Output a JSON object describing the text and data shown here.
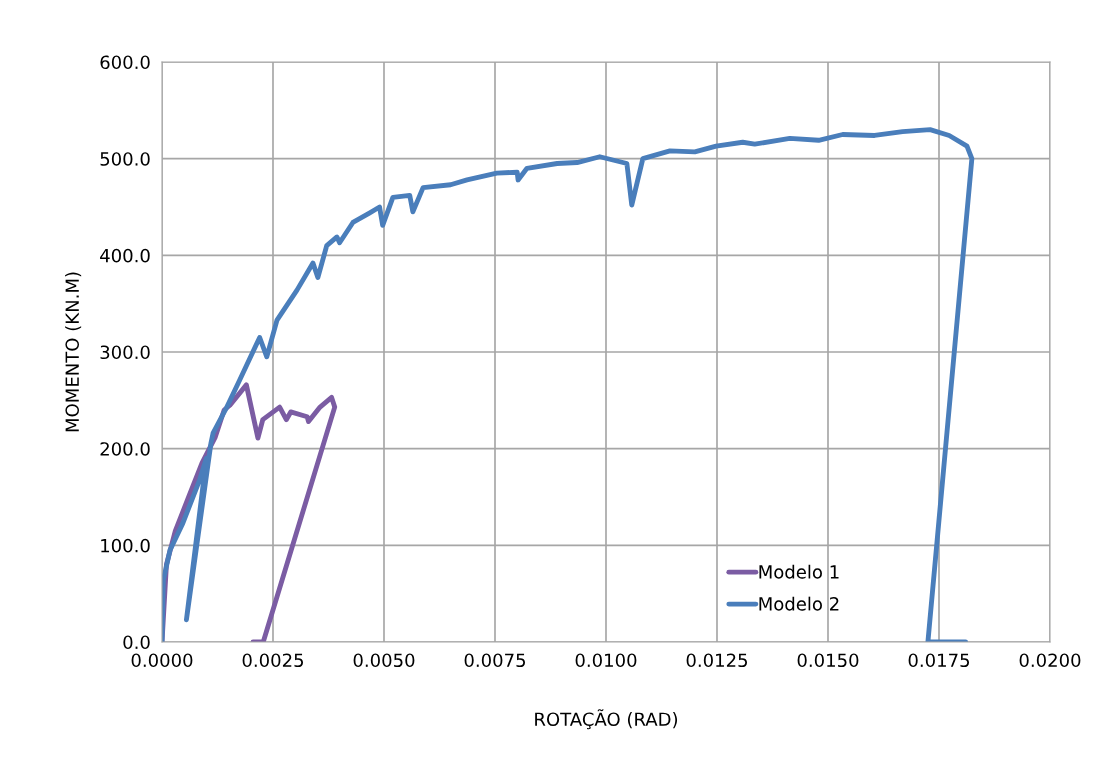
{
  "chart_data": {
    "type": "line",
    "xlabel": "ROTAÇÃO (RAD)",
    "ylabel": "MOMENTO (KN.M)",
    "xlim": [
      0,
      0.02
    ],
    "ylim": [
      0,
      600
    ],
    "xticks": [
      {
        "value": 0,
        "label": "0.0000"
      },
      {
        "value": 0.0025,
        "label": "0.0025"
      },
      {
        "value": 0.005,
        "label": "0.0050"
      },
      {
        "value": 0.0075,
        "label": "0.0075"
      },
      {
        "value": 0.01,
        "label": "0.0100"
      },
      {
        "value": 0.0125,
        "label": "0.0125"
      },
      {
        "value": 0.015,
        "label": "0.0150"
      },
      {
        "value": 0.0175,
        "label": "0.0175"
      },
      {
        "value": 0.02,
        "label": "0.0200"
      }
    ],
    "yticks": [
      {
        "value": 0,
        "label": "0.0"
      },
      {
        "value": 100,
        "label": "100.0"
      },
      {
        "value": 200,
        "label": "200.0"
      },
      {
        "value": 300,
        "label": "300.0"
      },
      {
        "value": 400,
        "label": "400.0"
      },
      {
        "value": 500,
        "label": "500.0"
      },
      {
        "value": 600,
        "label": "600.0"
      }
    ],
    "grid": true,
    "legend": "bottom right",
    "marker": "none",
    "line_style": "solid",
    "series": [
      {
        "name": "Modelo 1",
        "color": "#7b5ca3",
        "x": [
          0,
          0.0001,
          0.0003,
          0.0006,
          0.0009,
          0.0012,
          0.0014,
          0.00153,
          0.0019,
          0.00216,
          0.00227,
          0.00265,
          0.0028,
          0.0029,
          0.00327,
          0.0033,
          0.00356,
          0.00382,
          0.00389,
          0.00228,
          0.00205
        ],
        "values": [
          0,
          80,
          115,
          150,
          185,
          212,
          240,
          245,
          266,
          211,
          230,
          243,
          230,
          238,
          233,
          228,
          243,
          253,
          243,
          0,
          0
        ]
      },
      {
        "name": "Modelo 2",
        "color": "#4a7ebb",
        "x": [
          0,
          3e-05,
          0.00018,
          0.00047,
          0.00085,
          0.001,
          0.00055,
          0.0011,
          0.00115,
          0.00146,
          0.00175,
          0.0022,
          0.00236,
          0.00259,
          0.00304,
          0.0034,
          0.00351,
          0.00371,
          0.00394,
          0.004,
          0.0043,
          0.00468,
          0.0049,
          0.00497,
          0.0052,
          0.00558,
          0.00565,
          0.00588,
          0.0065,
          0.00687,
          0.00754,
          0.008,
          0.00802,
          0.00822,
          0.0089,
          0.00935,
          0.00986,
          0.01047,
          0.01058,
          0.01083,
          0.01144,
          0.012,
          0.01248,
          0.01308,
          0.01335,
          0.01414,
          0.01479,
          0.01533,
          0.01605,
          0.01668,
          0.0173,
          0.01773,
          0.01813,
          0.01824,
          0.01725,
          0.0181
        ],
        "values": [
          0,
          64,
          95,
          123,
          168,
          190,
          23,
          205,
          216,
          243,
          271,
          315,
          295,
          333,
          364,
          392,
          377,
          410,
          419,
          413,
          434,
          444,
          450,
          431,
          460,
          462,
          445,
          470,
          473,
          478,
          485,
          486,
          478,
          490,
          495,
          496,
          502,
          495,
          452,
          500,
          508,
          507,
          513,
          517,
          515,
          521,
          519,
          525,
          524,
          528,
          530,
          524,
          513,
          500,
          0,
          0
        ]
      }
    ]
  }
}
